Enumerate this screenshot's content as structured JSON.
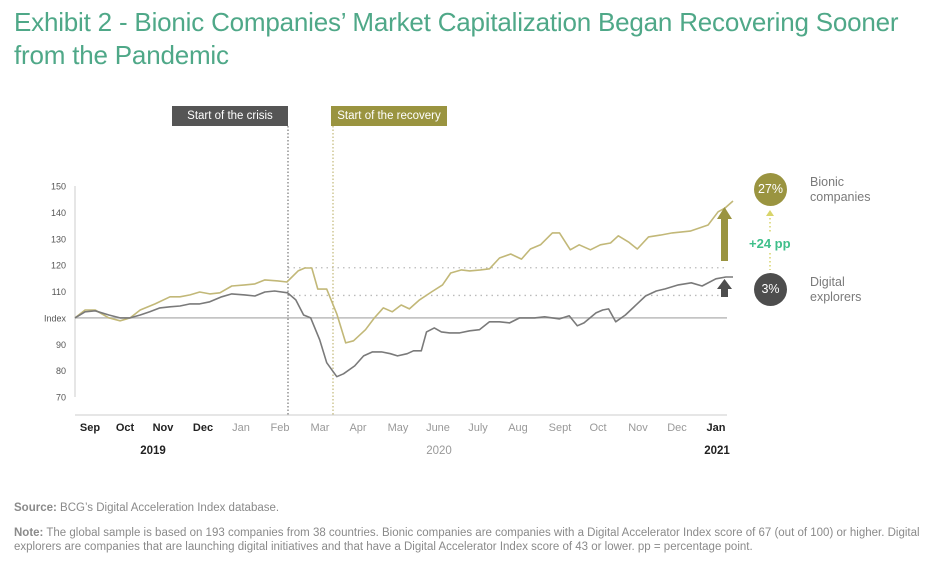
{
  "title": "Exhibit 2 - Bionic Companies’ Market Capitalization Began Recovering Sooner from the Pandemic",
  "annotations": {
    "crisis_label": "Start of the crisis",
    "recovery_label": "Start of the recovery",
    "gap_label": "+24 pp"
  },
  "legend": {
    "bionic": {
      "badge": "27%",
      "name": "Bionic companies",
      "color": "#9a9440"
    },
    "explorers": {
      "badge": "3%",
      "name": "Digital explorers",
      "color": "#4d4d4d"
    }
  },
  "footer": {
    "source_label": "Source:",
    "source_text": " BCG’s Digital Acceleration Index database.",
    "note_label": "Note:",
    "note_text": " The global sample is based on 193 companies from 38 countries. Bionic companies are companies with a Digital Accelerator Index score of 67 (out of 100) or higher. Digital explorers are companies that are launching digital initiatives and that have a Digital Accelerator Index score of 43 or lower. pp = percentage point."
  },
  "chart_data": {
    "type": "line",
    "title": "Exhibit 2 - Bionic Companies’ Market Capitalization Began Recovering Sooner from the Pandemic",
    "xlabel": "",
    "ylabel": "",
    "ylim": [
      70,
      150
    ],
    "yticks": [
      {
        "value": 150,
        "label": "150"
      },
      {
        "value": 140,
        "label": "140"
      },
      {
        "value": 130,
        "label": "130"
      },
      {
        "value": 120,
        "label": "120"
      },
      {
        "value": 110,
        "label": "110"
      },
      {
        "value": 100,
        "label": "Index"
      },
      {
        "value": 90,
        "label": "90"
      },
      {
        "value": 80,
        "label": "80"
      },
      {
        "value": 70,
        "label": "70"
      }
    ],
    "xlim": [
      0,
      17.5
    ],
    "month_ticks": [
      {
        "x": 0.5,
        "label": "Sep",
        "bold": true
      },
      {
        "x": 1.5,
        "label": "Oct",
        "bold": true
      },
      {
        "x": 2.5,
        "label": "Nov",
        "bold": true
      },
      {
        "x": 3.5,
        "label": "Dec",
        "bold": true
      },
      {
        "x": 4.5,
        "label": "Jan",
        "bold": false
      },
      {
        "x": 5.5,
        "label": "Feb",
        "bold": false
      },
      {
        "x": 6.5,
        "label": "Mar",
        "bold": false
      },
      {
        "x": 7.5,
        "label": "Apr",
        "bold": false
      },
      {
        "x": 8.5,
        "label": "May",
        "bold": false
      },
      {
        "x": 9.5,
        "label": "June",
        "bold": false
      },
      {
        "x": 10.5,
        "label": "July",
        "bold": false
      },
      {
        "x": 11.5,
        "label": "Aug",
        "bold": false
      },
      {
        "x": 12.5,
        "label": "Sept",
        "bold": false
      },
      {
        "x": 13.5,
        "label": "Oct",
        "bold": false
      },
      {
        "x": 14.5,
        "label": "Nov",
        "bold": false
      },
      {
        "x": 15.5,
        "label": "Dec",
        "bold": false
      },
      {
        "x": 16.5,
        "label": "Jan",
        "bold": true
      }
    ],
    "year_labels": [
      {
        "x": 2.1,
        "label": "2019",
        "bold": true
      },
      {
        "x": 9.7,
        "label": "2020",
        "bold": false
      },
      {
        "x": 17.0,
        "label": "2021",
        "bold": true
      }
    ],
    "events": [
      {
        "x": 5.75,
        "label": "Start of the crisis"
      },
      {
        "x": 6.95,
        "label": "Start of the recovery"
      }
    ],
    "reference_lines": [
      100,
      119,
      108.5
    ],
    "series": [
      {
        "name": "Bionic companies",
        "color": "#c2b878",
        "x": [
          0,
          0.27,
          0.54,
          0.91,
          1.21,
          1.48,
          1.75,
          2.15,
          2.55,
          2.82,
          3.09,
          3.35,
          3.62,
          3.89,
          4.21,
          4.56,
          4.83,
          5.1,
          5.45,
          5.69,
          5.99,
          6.17,
          6.36,
          6.52,
          6.76,
          7.03,
          7.27,
          7.48,
          7.8,
          8.04,
          8.28,
          8.52,
          8.76,
          8.98,
          9.25,
          9.57,
          9.87,
          10.09,
          10.38,
          10.6,
          10.89,
          11.13,
          11.4,
          11.7,
          11.99,
          12.23,
          12.5,
          12.82,
          13.01,
          13.3,
          13.54,
          13.84,
          14.11,
          14.38,
          14.59,
          14.86,
          15.1,
          15.4,
          15.72,
          16.04,
          16.52,
          17.0,
          17.27,
          17.46,
          17.67
        ],
        "values": [
          100,
          103,
          103,
          100,
          98.9,
          100,
          103,
          105.3,
          108,
          108,
          108.7,
          109.8,
          109.1,
          109.5,
          112.1,
          112.5,
          112.9,
          114.4,
          114,
          113.6,
          117.8,
          118.9,
          118.9,
          110.9,
          110.9,
          101.5,
          90.5,
          91.3,
          95.5,
          100,
          103.8,
          102.3,
          104.9,
          103.4,
          106.8,
          109.8,
          112.5,
          117,
          118.2,
          117.8,
          118.2,
          118.6,
          122.7,
          124.2,
          122.3,
          126.1,
          127.7,
          132.2,
          132.2,
          125.8,
          127.7,
          125.8,
          127.7,
          128.4,
          131.1,
          128.8,
          126.1,
          130.7,
          131.4,
          132.2,
          132.9,
          135.2,
          140.2,
          141.7,
          144.3
        ]
      },
      {
        "name": "Digital explorers",
        "color": "#7a7a7a",
        "x": [
          0,
          0.27,
          0.54,
          0.91,
          1.21,
          1.48,
          1.75,
          2.01,
          2.28,
          2.55,
          2.82,
          3.09,
          3.35,
          3.62,
          3.94,
          4.21,
          4.56,
          4.83,
          5.1,
          5.36,
          5.71,
          5.93,
          6.14,
          6.33,
          6.57,
          6.76,
          7.03,
          7.21,
          7.51,
          7.75,
          7.99,
          8.23,
          8.47,
          8.66,
          8.92,
          9.09,
          9.3,
          9.44,
          9.65,
          9.84,
          10.06,
          10.33,
          10.6,
          10.86,
          11.13,
          11.4,
          11.67,
          11.94,
          12.34,
          12.61,
          13.01,
          13.27,
          13.49,
          13.67,
          13.99,
          14.17,
          14.33,
          14.52,
          14.78,
          15.32,
          15.61,
          15.85,
          16.2,
          16.55,
          16.84,
          17.21,
          17.48,
          17.67
        ],
        "values": [
          100,
          102.3,
          102.7,
          101.1,
          100,
          100,
          101.1,
          102.3,
          103.8,
          104.2,
          104.5,
          105.3,
          105.3,
          106.1,
          108,
          109.1,
          108.7,
          108.3,
          109.8,
          110.2,
          109.5,
          106.8,
          101.1,
          100,
          91.7,
          83,
          77.7,
          78.8,
          81.8,
          85.6,
          87.1,
          87.1,
          86.4,
          85.6,
          86.4,
          87.5,
          87.5,
          94.7,
          96.2,
          94.7,
          94.3,
          94.3,
          95.1,
          95.5,
          98.5,
          98.5,
          98.1,
          100,
          100,
          100.4,
          99.6,
          100.8,
          97,
          98.1,
          101.9,
          103,
          103.4,
          98.5,
          101.1,
          108.3,
          110.2,
          111,
          112.5,
          113.3,
          112.1,
          114.8,
          115.5,
          115.5
        ]
      }
    ]
  }
}
